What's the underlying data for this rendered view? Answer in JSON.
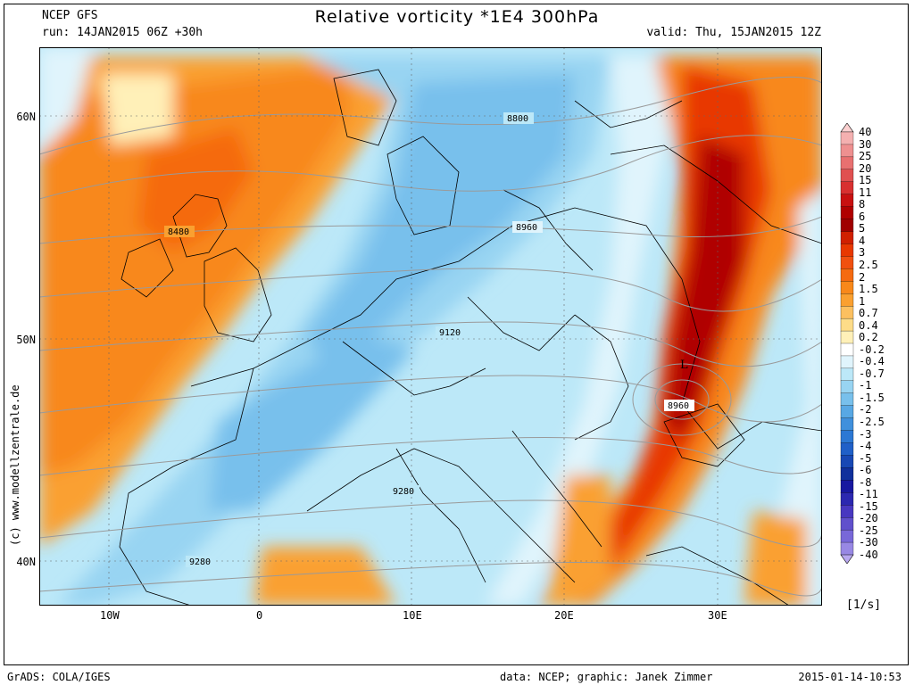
{
  "header": {
    "model": "NCEP GFS",
    "run": "run: 14JAN2015 06Z +30h",
    "title": "Relative vorticity *1E4 300hPa",
    "valid": "valid: Thu, 15JAN2015 12Z"
  },
  "map": {
    "lat_labels": [
      "60N",
      "50N",
      "40N"
    ],
    "lon_labels": [
      "10W",
      "0",
      "10E",
      "20E",
      "30E"
    ],
    "contour_labels": [
      "8800",
      "8480",
      "8960",
      "9120",
      "8960",
      "9280",
      "9280"
    ],
    "low_marker": "L",
    "copyright": "(c) www.modellzentrale.de"
  },
  "colorbar": {
    "unit": "[1/s]",
    "levels": [
      "40",
      "30",
      "25",
      "20",
      "15",
      "11",
      "8",
      "6",
      "5",
      "4",
      "3",
      "2.5",
      "2",
      "1.5",
      "1",
      "0.7",
      "0.4",
      "0.2",
      "-0.2",
      "-0.4",
      "-0.7",
      "-1",
      "-1.5",
      "-2",
      "-2.5",
      "-3",
      "-4",
      "-5",
      "-6",
      "-8",
      "-11",
      "-15",
      "-20",
      "-25",
      "-30",
      "-40"
    ],
    "colors": [
      "#fbd0d0",
      "#f4b0b0",
      "#ee9090",
      "#e87070",
      "#e05050",
      "#d83030",
      "#c81010",
      "#b00000",
      "#a00000",
      "#d02000",
      "#e83800",
      "#f05010",
      "#f56a10",
      "#f8881a",
      "#faa030",
      "#fcc060",
      "#fddc88",
      "#fff0b8",
      "#ffffff",
      "#e0f4fc",
      "#bce8f8",
      "#98d4f2",
      "#78c0ec",
      "#58a8e4",
      "#4090dc",
      "#2c78d4",
      "#2060c8",
      "#1848b4",
      "#10309c",
      "#1818a0",
      "#2c28b0",
      "#4838c0",
      "#6050cc",
      "#7868d8",
      "#9888e4",
      "#b8a8f0"
    ]
  },
  "footer": {
    "left": "GrADS: COLA/IGES",
    "middle": "data: NCEP; graphic: Janek Zimmer",
    "right": "2015-01-14-10:53"
  }
}
